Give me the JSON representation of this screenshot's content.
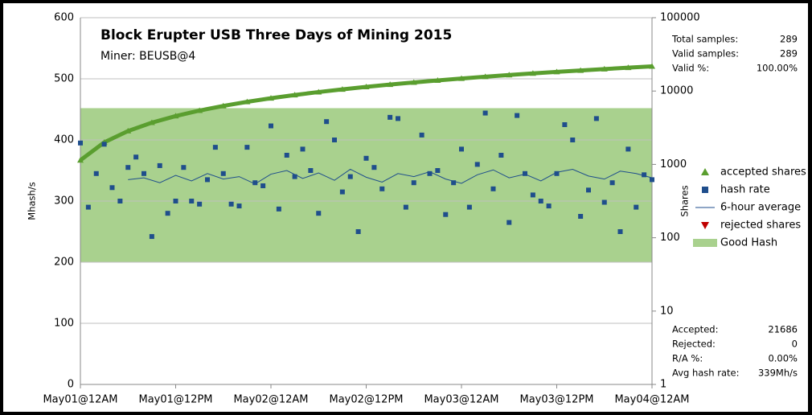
{
  "chart_data": {
    "type": "combo",
    "title": "Block Erupter USB Three Days of Mining 2015",
    "subtitle": "Miner: BEUSB@4",
    "y_label": "Mhash/s",
    "y2_label": "Shares",
    "xlim": [
      0,
      72
    ],
    "xticks": [
      {
        "value": 0,
        "label": "May01@12AM"
      },
      {
        "value": 12,
        "label": "May01@12PM"
      },
      {
        "value": 24,
        "label": "May02@12AM"
      },
      {
        "value": 36,
        "label": "May02@12PM"
      },
      {
        "value": 48,
        "label": "May03@12AM"
      },
      {
        "value": 60,
        "label": "May03@12PM"
      },
      {
        "value": 72,
        "label": "May04@12AM"
      }
    ],
    "ylim": [
      0,
      600
    ],
    "yticks": [
      0,
      100,
      200,
      300,
      400,
      500,
      600
    ],
    "y2lim": [
      1,
      100000
    ],
    "y2ticks": [
      1,
      10,
      100,
      1000,
      10000,
      100000
    ],
    "y2log": true,
    "grid": true,
    "band": {
      "name": "Good Hash",
      "color": "#a9d18e",
      "range": [
        200,
        452
      ]
    },
    "series": [
      {
        "name": "accepted shares",
        "color": "#5a9e2f",
        "marker": "triangle",
        "axis": "y2",
        "x": [
          0,
          3,
          6,
          9,
          12,
          15,
          18,
          21,
          24,
          27,
          30,
          33,
          36,
          39,
          42,
          45,
          48,
          51,
          54,
          57,
          60,
          63,
          66,
          69,
          72
        ],
        "values": [
          1140,
          1995,
          2850,
          3705,
          4560,
          5415,
          6270,
          7125,
          7980,
          8835,
          9690,
          10545,
          11400,
          12255,
          13110,
          13965,
          14820,
          15675,
          16530,
          17385,
          18240,
          19095,
          19950,
          20805,
          21686
        ]
      },
      {
        "name": "hash rate",
        "color": "#1f4e8c",
        "marker": "square",
        "x": [
          0,
          1,
          2,
          3,
          4,
          5,
          6,
          7,
          8,
          9,
          10,
          11,
          12,
          13,
          14,
          15,
          16,
          17,
          18,
          19,
          20,
          21,
          22,
          23,
          24,
          25,
          26,
          27,
          28,
          29,
          30,
          31,
          32,
          33,
          34,
          35,
          36,
          37,
          38,
          39,
          40,
          41,
          42,
          43,
          44,
          45,
          46,
          47,
          48,
          49,
          50,
          51,
          52,
          53,
          54,
          55,
          56,
          57,
          58,
          59,
          60,
          61,
          62,
          63,
          64,
          65,
          66,
          67,
          68,
          69,
          70,
          71,
          72
        ],
        "values": [
          395,
          290,
          345,
          393,
          322,
          300,
          355,
          372,
          345,
          242,
          358,
          280,
          300,
          355,
          300,
          295,
          335,
          388,
          345,
          295,
          292,
          388,
          330,
          325,
          423,
          287,
          375,
          340,
          385,
          350,
          280,
          430,
          400,
          315,
          340,
          250,
          370,
          355,
          320,
          437,
          435,
          290,
          330,
          408,
          345,
          350,
          278,
          330,
          385,
          290,
          360,
          444,
          320,
          375,
          265,
          440,
          345,
          310,
          300,
          292,
          345,
          425,
          400,
          275,
          318,
          435,
          298,
          330,
          250,
          385,
          290,
          343,
          335
        ]
      },
      {
        "name": "6-hour average",
        "color": "#1f4e8c",
        "marker": "line",
        "x": [
          6,
          8,
          10,
          12,
          14,
          16,
          18,
          20,
          22,
          24,
          26,
          28,
          30,
          32,
          34,
          36,
          38,
          40,
          42,
          44,
          46,
          48,
          50,
          52,
          54,
          56,
          58,
          60,
          62,
          64,
          66,
          68,
          70,
          72
        ],
        "values": [
          335,
          338,
          330,
          342,
          333,
          345,
          336,
          340,
          328,
          344,
          350,
          337,
          346,
          334,
          352,
          339,
          331,
          345,
          340,
          348,
          336,
          329,
          343,
          351,
          338,
          344,
          333,
          347,
          352,
          341,
          336,
          349,
          345,
          338
        ]
      },
      {
        "name": "rejected shares",
        "color": "#c00000",
        "marker": "triangle-down",
        "axis": "y2",
        "x": [],
        "values": []
      }
    ],
    "stats_top": [
      [
        "Total samples:",
        "289"
      ],
      [
        "Valid samples:",
        "289"
      ],
      [
        "Valid %:",
        "100.00%"
      ]
    ],
    "stats_bottom": [
      [
        "Accepted:",
        "21686"
      ],
      [
        "Rejected:",
        "0"
      ],
      [
        "R/A %:",
        "0.00%"
      ],
      [
        "Avg hash rate:",
        "339Mh/s"
      ]
    ]
  }
}
